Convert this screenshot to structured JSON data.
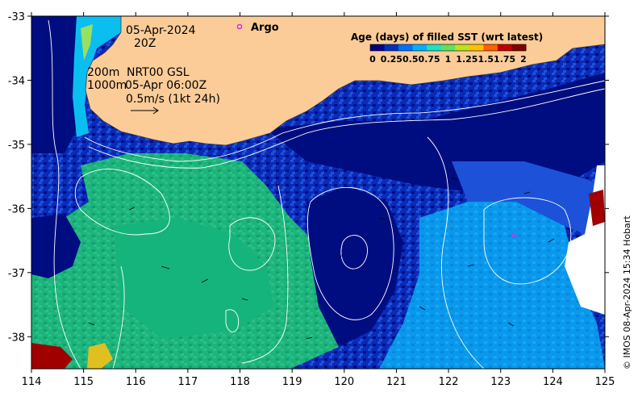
{
  "annotations": {
    "date": "05-Apr-2024",
    "time": "20Z",
    "depth_200": "200m",
    "depth_1000": "1000m",
    "model": "NRT00 GSL",
    "model_time": "05-Apr 06:00Z",
    "scale_label": "0.5m/s (1kt 24h)"
  },
  "legend": {
    "argo_label": "Argo",
    "argo_color": "#e020e0"
  },
  "colorbar": {
    "title": "Age (days) of filled SST (wrt latest)",
    "tick_labels": [
      "0",
      "0.25",
      "0.5",
      "0.75",
      "1",
      "1.25",
      "1.5",
      "1.75",
      "2"
    ],
    "colors": [
      "#000080",
      "#0030c0",
      "#0070ff",
      "#00b0ff",
      "#20e0c0",
      "#60e060",
      "#c0e020",
      "#ffc000",
      "#ff6000",
      "#c00000",
      "#800000"
    ]
  },
  "credit": "© IMOS 08-Apr-2024 15:34 Hobart",
  "axes": {
    "x_ticks": [
      114,
      115,
      116,
      117,
      118,
      119,
      120,
      121,
      122,
      123,
      124,
      125
    ],
    "y_ticks": [
      -33,
      -34,
      -35,
      -36,
      -37,
      -38
    ],
    "xlim": [
      114,
      125
    ],
    "ylim": [
      -38.5,
      -33
    ]
  },
  "argo_floats": [
    {
      "lon": 118.0,
      "lat": -33.2
    },
    {
      "lon": 123.25,
      "lat": -36.42
    }
  ],
  "colors": {
    "land": "#fccc98",
    "deep": "#000d80",
    "dark_blue": "#0a2ab8",
    "mid_blue": "#1d52d8",
    "light_blue": "#0a9ef0",
    "teal_green": "#15b47c",
    "green": "#1ebe78",
    "gray_patch": "#c8c8c8"
  }
}
